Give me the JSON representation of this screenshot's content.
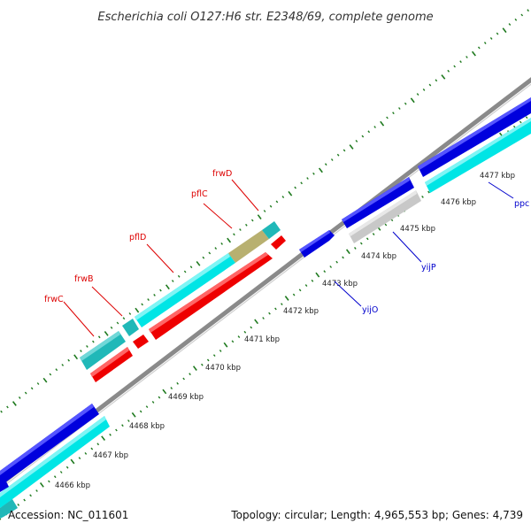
{
  "title": "Escherichia coli O127:H6 str. E2348/69, complete genome",
  "footer": {
    "accession": "Accession: NC_011601",
    "summary": "Topology: circular; Length: 4,965,553 bp; Genes: 4,739"
  },
  "colors": {
    "backbone": "#8c8c8c",
    "tick": "#1f7a1f",
    "forward_gene": "#0000dd",
    "forward_cds": "#00e5e5",
    "reverse_gene": "#ee0000",
    "pseudo": "#c8c8c8",
    "highlight": "#b8b070",
    "teal": "#20b8b8",
    "label_red": "#dd0000",
    "label_blue": "#0000cc"
  },
  "kbp_labels": [
    "4466 kbp",
    "4467 kbp",
    "4468 kbp",
    "4469 kbp",
    "4470 kbp",
    "4471 kbp",
    "4472 kbp",
    "4473 kbp",
    "4474 kbp",
    "4475 kbp",
    "4476 kbp",
    "4477 kbp"
  ],
  "gene_labels": {
    "frwC": "frwC",
    "frwB": "frwB",
    "pflD": "pflD",
    "pflC": "pflC",
    "frwD": "frwD",
    "yijO": "yijO",
    "yijP": "yijP",
    "ppc": "ppc"
  }
}
